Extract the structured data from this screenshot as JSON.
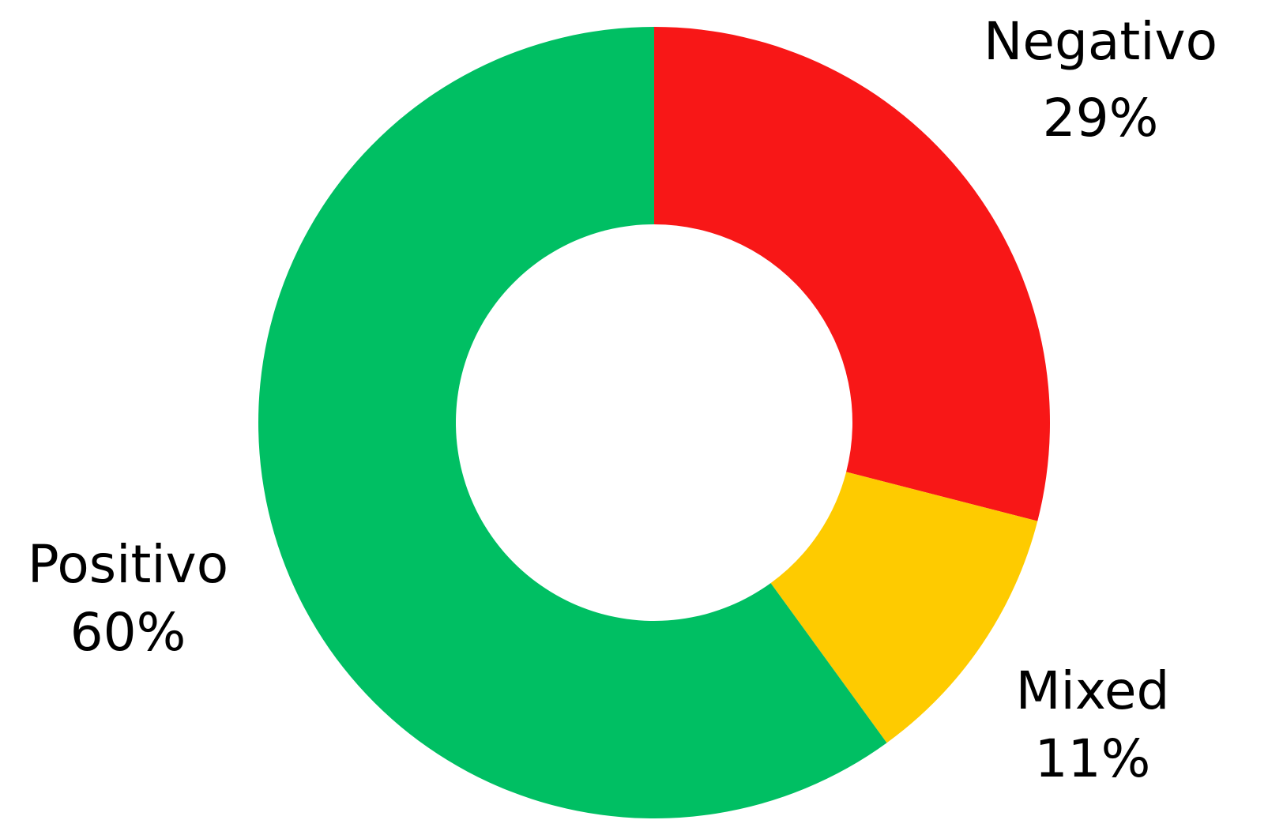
{
  "chart_data": {
    "type": "pie",
    "variant": "donut",
    "categories": [
      "Negativo",
      "Mixed",
      "Positivo"
    ],
    "values": [
      29,
      11,
      60
    ],
    "value_labels": [
      "29%",
      "11%",
      "60%"
    ],
    "colors": [
      "#f81717",
      "#fecb00",
      "#00bf63"
    ],
    "start_angle": "12 o'clock",
    "direction": "clockwise",
    "label_placement": "outside",
    "legend": "none",
    "background": "#ffffff"
  }
}
